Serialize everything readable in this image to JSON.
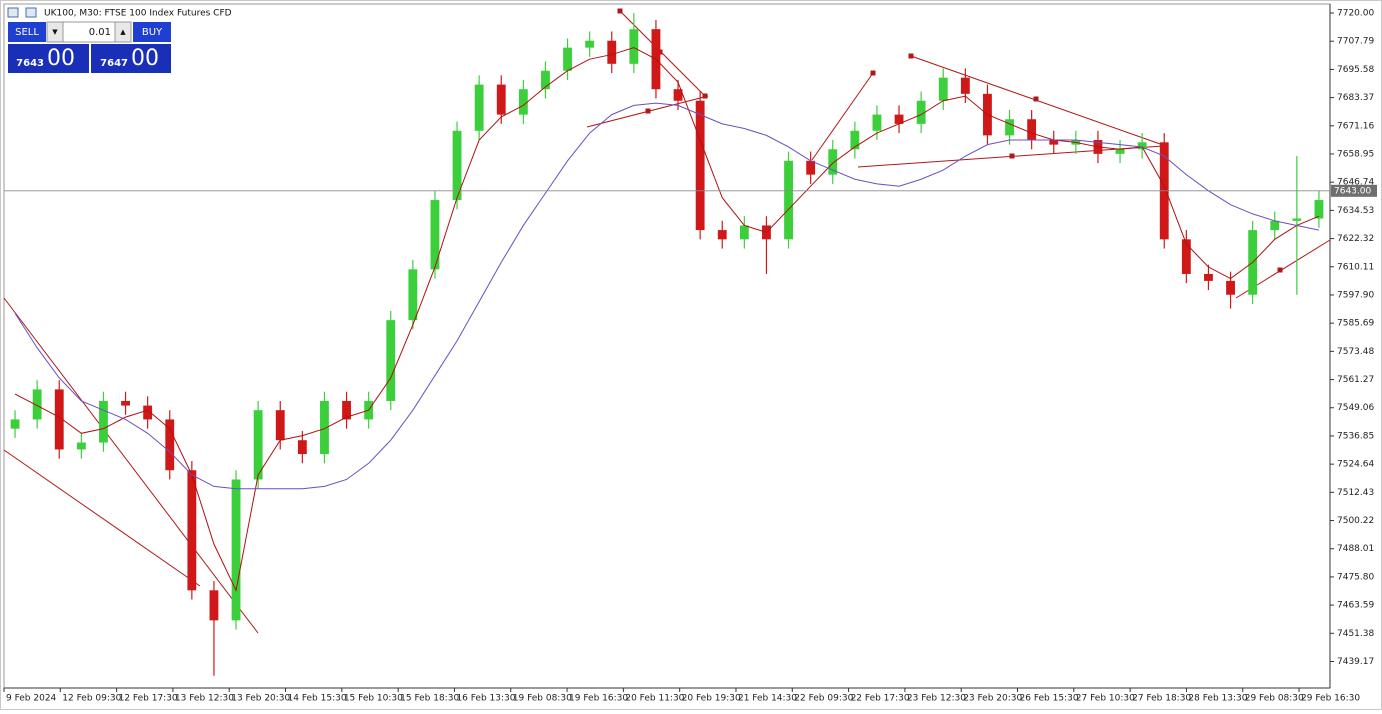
{
  "header": {
    "title": "UK100, M30:  FTSE 100 Index Futures CFD"
  },
  "trade_panel": {
    "sell": "SELL",
    "buy": "BUY",
    "down": "▼",
    "up": "▲",
    "lot": "0.01",
    "bid": "7643",
    "bid_frac": "00",
    "ask": "7647",
    "ask_frac": "00"
  },
  "chart_data": {
    "type": "candlestick",
    "up_color": "#3ccf3c",
    "down_color": "#d01818",
    "open": [
      7540,
      7544,
      7557,
      7531,
      7534,
      7552,
      7550,
      7544,
      7522,
      7470,
      7457,
      7518,
      7548,
      7535,
      7529,
      7552,
      7544,
      7552,
      7587,
      7609,
      7639,
      7669,
      7689,
      7676,
      7687,
      7695,
      7705,
      7708,
      7698,
      7713,
      7687,
      7682,
      7626,
      7622,
      7628,
      7622,
      7656,
      7650,
      7661,
      7669,
      7676,
      7672,
      7682,
      7692,
      7685,
      7667,
      7674,
      7665,
      7663,
      7665,
      7659,
      7661,
      7664,
      7622,
      7607,
      7604,
      7598,
      7626,
      7630,
      7631
    ],
    "high": [
      7548,
      7561,
      7561,
      7538,
      7556,
      7556,
      7554,
      7548,
      7526,
      7474,
      7522,
      7552,
      7552,
      7539,
      7556,
      7556,
      7556,
      7591,
      7613,
      7643,
      7673,
      7693,
      7693,
      7691,
      7699,
      7709,
      7712,
      7712,
      7720,
      7717,
      7691,
      7686,
      7630,
      7632,
      7632,
      7660,
      7660,
      7665,
      7673,
      7680,
      7680,
      7686,
      7696,
      7696,
      7689,
      7678,
      7678,
      7669,
      7669,
      7669,
      7665,
      7668,
      7668,
      7626,
      7611,
      7608,
      7630,
      7634,
      7658,
      7643
    ],
    "low": [
      7536,
      7540,
      7527,
      7527,
      7530,
      7546,
      7540,
      7518,
      7466,
      7433,
      7453,
      7514,
      7531,
      7525,
      7525,
      7540,
      7540,
      7548,
      7583,
      7605,
      7635,
      7665,
      7672,
      7672,
      7683,
      7691,
      7701,
      7694,
      7694,
      7683,
      7678,
      7622,
      7618,
      7618,
      7607,
      7618,
      7646,
      7646,
      7657,
      7665,
      7668,
      7668,
      7678,
      7681,
      7663,
      7663,
      7661,
      7659,
      7659,
      7655,
      7655,
      7657,
      7618,
      7603,
      7600,
      7592,
      7594,
      7622,
      7598,
      7627
    ],
    "close": [
      7544,
      7557,
      7531,
      7534,
      7552,
      7550,
      7544,
      7522,
      7470,
      7457,
      7518,
      7548,
      7535,
      7529,
      7552,
      7544,
      7552,
      7587,
      7609,
      7639,
      7669,
      7689,
      7676,
      7687,
      7695,
      7705,
      7708,
      7698,
      7713,
      7687,
      7682,
      7626,
      7622,
      7628,
      7622,
      7656,
      7650,
      7661,
      7669,
      7676,
      7672,
      7682,
      7692,
      7685,
      7667,
      7674,
      7665,
      7663,
      7665,
      7659,
      7661,
      7664,
      7622,
      7607,
      7604,
      7598,
      7626,
      7630,
      7631,
      7639
    ],
    "series": [
      {
        "color": "#b01010",
        "values": [
          7555,
          7550,
          7545,
          7538,
          7540,
          7545,
          7548,
          7540,
          7520,
          7490,
          7470,
          7520,
          7535,
          7537,
          7540,
          7545,
          7548,
          7562,
          7585,
          7610,
          7640,
          7665,
          7675,
          7680,
          7688,
          7695,
          7700,
          7702,
          7705,
          7700,
          7690,
          7665,
          7640,
          7628,
          7625,
          7635,
          7645,
          7655,
          7662,
          7668,
          7672,
          7676,
          7682,
          7684,
          7676,
          7672,
          7668,
          7665,
          7664,
          7662,
          7661,
          7662,
          7645,
          7620,
          7610,
          7605,
          7612,
          7622,
          7628,
          7632
        ]
      },
      {
        "color": "#6a4fc0",
        "values": [
          7590,
          7575,
          7562,
          7552,
          7548,
          7544,
          7538,
          7530,
          7520,
          7515,
          7514,
          7514,
          7514,
          7514,
          7515,
          7518,
          7525,
          7535,
          7548,
          7563,
          7578,
          7595,
          7612,
          7628,
          7642,
          7656,
          7668,
          7676,
          7680,
          7681,
          7680,
          7676,
          7672,
          7670,
          7667,
          7662,
          7656,
          7652,
          7648,
          7646,
          7645,
          7648,
          7652,
          7658,
          7663,
          7665,
          7665,
          7665,
          7665,
          7664,
          7663,
          7662,
          7658,
          7650,
          7643,
          7637,
          7633,
          7630,
          7628,
          7626
        ]
      }
    ],
    "xtick_labels": [
      "9 Feb 2024",
      "12 Feb 09:30",
      "12 Feb 17:30",
      "13 Feb 12:30",
      "13 Feb 20:30",
      "14 Feb 15:30",
      "15 Feb 10:30",
      "15 Feb 18:30",
      "16 Feb 13:30",
      "19 Feb 08:30",
      "19 Feb 16:30",
      "20 Feb 11:30",
      "20 Feb 19:30",
      "21 Feb 14:30",
      "22 Feb 09:30",
      "22 Feb 17:30",
      "23 Feb 12:30",
      "23 Feb 20:30",
      "26 Feb 15:30",
      "27 Feb 10:30",
      "27 Feb 18:30",
      "28 Feb 13:30",
      "29 Feb 08:30",
      "29 Feb 16:30"
    ],
    "ylim": [
      7427.7,
      7723.9
    ],
    "yticks": [
      {
        "value": 7720,
        "label": "7720.00"
      },
      7707.79,
      7695.58,
      7683.37,
      7671.16,
      7658.95,
      7646.74,
      7634.53,
      7622.32,
      7610.11,
      {
        "value": 7597.9,
        "label": "7597.90"
      },
      7585.69,
      7573.48,
      7561.27,
      7549.06,
      7536.85,
      7524.64,
      7512.43,
      7500.22,
      7488.01,
      {
        "value": 7475.8,
        "label": "7475.80"
      },
      7463.59,
      7451.38,
      7439.17
    ],
    "current_price": {
      "value": 7643,
      "label": "7643.00"
    }
  }
}
